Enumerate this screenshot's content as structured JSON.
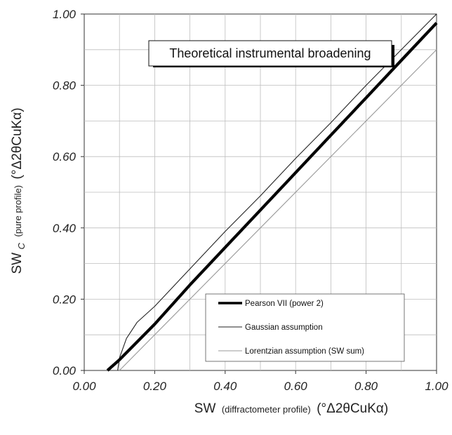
{
  "chart_data": {
    "type": "line",
    "title": "Theoretical instrumental broadening",
    "xlabel": {
      "main": "SW",
      "sub": "(diffractometer profile)",
      "unit": "(°Δ2θCuKα)"
    },
    "ylabel": {
      "main": "SW",
      "subscript": "C",
      "sub": "(pure profile)",
      "unit": "(°Δ2θCuKα)"
    },
    "xlim": [
      0.0,
      1.0
    ],
    "ylim": [
      0.0,
      1.0
    ],
    "xticks": [
      "0.00",
      "0.20",
      "0.40",
      "0.60",
      "0.80",
      "1.00"
    ],
    "yticks": [
      "0.00",
      "0.20",
      "0.40",
      "0.60",
      "0.80",
      "1.00"
    ],
    "grid": true,
    "legend_position": "bottom-right",
    "series": [
      {
        "name": "Pearson VII (power 2)",
        "style": "thick",
        "color": "#000000",
        "x": [
          0.066,
          0.1,
          0.2,
          0.3,
          0.4,
          0.5,
          0.6,
          0.7,
          0.8,
          0.9,
          1.0
        ],
        "y": [
          0.0,
          0.03,
          0.13,
          0.24,
          0.345,
          0.45,
          0.555,
          0.66,
          0.765,
          0.87,
          0.975
        ]
      },
      {
        "name": "Gaussian assumption",
        "style": "thin",
        "color": "#222222",
        "x": [
          0.095,
          0.1,
          0.12,
          0.15,
          0.2,
          0.3,
          0.4,
          0.5,
          0.6,
          0.7,
          0.8,
          0.9,
          1.0
        ],
        "y": [
          0.0,
          0.035,
          0.09,
          0.135,
          0.18,
          0.285,
          0.39,
          0.49,
          0.595,
          0.695,
          0.8,
          0.9,
          1.0
        ]
      },
      {
        "name": "Lorentzian assumption (SW sum)",
        "style": "thin",
        "color": "#999999",
        "x": [
          0.1,
          1.0
        ],
        "y": [
          0.0,
          0.9
        ]
      }
    ]
  }
}
